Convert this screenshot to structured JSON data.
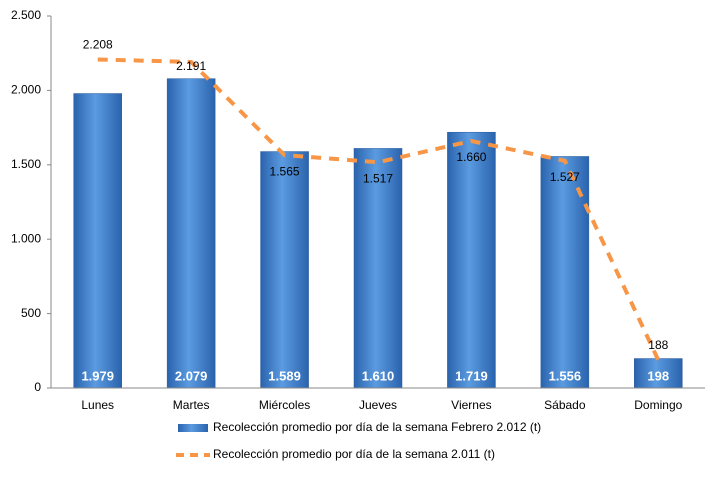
{
  "chart_data": {
    "type": "combo",
    "categories": [
      "Lunes",
      "Martes",
      "Miércoles",
      "Jueves",
      "Viernes",
      "Sábado",
      "Domingo"
    ],
    "series": [
      {
        "name": "Recolección promedio por día de la semana Febrero 2.012 (t)",
        "type": "bar",
        "color": "#3d7fd0",
        "values": [
          1979,
          2079,
          1589,
          1610,
          1719,
          1556,
          198
        ],
        "value_labels": [
          "1.979",
          "2.079",
          "1.589",
          "1.610",
          "1.719",
          "1.556",
          "198"
        ]
      },
      {
        "name": "Recolección promedio por día de la semana 2.011 (t)",
        "type": "line",
        "color": "#f79646",
        "values": [
          2208,
          2191,
          1565,
          1517,
          1660,
          1527,
          188
        ],
        "value_labels": [
          "2.208",
          "2.191",
          "1.565",
          "1.517",
          "1.660",
          "1.527",
          "188"
        ]
      }
    ],
    "ylim": [
      0,
      2500
    ],
    "yticks": [
      0,
      500,
      {
        "value": 1000,
        "label": "1.000"
      },
      {
        "value": 1500,
        "label": "1.500"
      },
      {
        "value": 2000,
        "label": "2.000"
      },
      {
        "value": 2500,
        "label": "2.500"
      }
    ],
    "legend": "bottom"
  }
}
